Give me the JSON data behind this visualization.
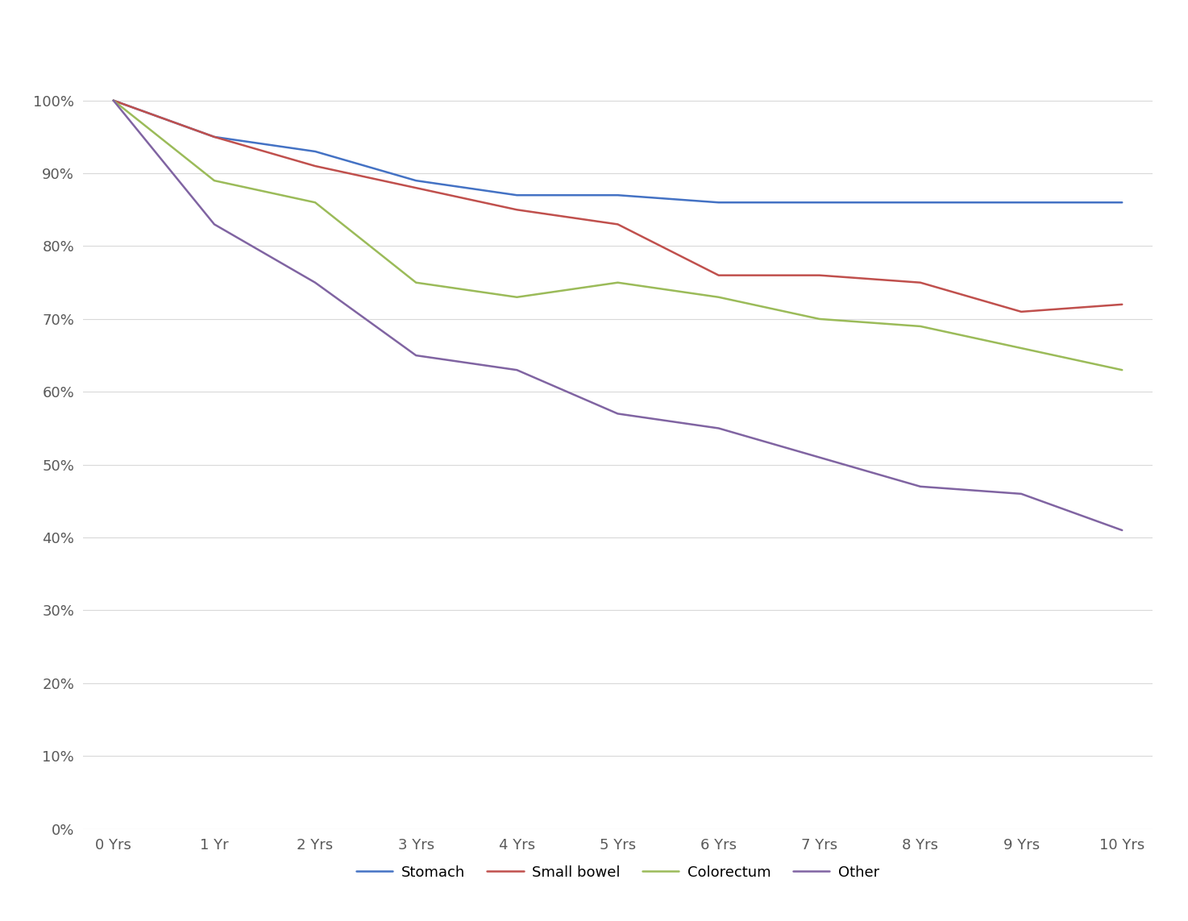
{
  "x_labels": [
    "0 Yrs",
    "1 Yr",
    "2 Yrs",
    "3 Yrs",
    "4 Yrs",
    "5 Yrs",
    "6 Yrs",
    "7 Yrs",
    "8 Yrs",
    "9 Yrs",
    "10 Yrs"
  ],
  "x_values": [
    0,
    1,
    2,
    3,
    4,
    5,
    6,
    7,
    8,
    9,
    10
  ],
  "series": {
    "Stomach": {
      "values": [
        100,
        95,
        93,
        89,
        87,
        87,
        86,
        86,
        86,
        86,
        86
      ],
      "color": "#4472C4"
    },
    "Small bowel": {
      "values": [
        100,
        95,
        91,
        88,
        85,
        83,
        76,
        76,
        75,
        71,
        72
      ],
      "color": "#C0504D"
    },
    "Colorectum": {
      "values": [
        100,
        89,
        86,
        75,
        73,
        75,
        73,
        70,
        69,
        66,
        63
      ],
      "color": "#9BBB59"
    },
    "Other": {
      "values": [
        100,
        83,
        75,
        65,
        63,
        57,
        55,
        51,
        47,
        46,
        41
      ],
      "color": "#8064A2"
    }
  },
  "ylim": [
    0,
    110
  ],
  "yticks": [
    0,
    10,
    20,
    30,
    40,
    50,
    60,
    70,
    80,
    90,
    100
  ],
  "ytick_labels": [
    "0%",
    "10%",
    "20%",
    "30%",
    "40%",
    "50%",
    "60%",
    "70%",
    "80%",
    "90%",
    "100%"
  ],
  "grid_color": "#D9D9D9",
  "background_color": "#FFFFFF",
  "legend_order": [
    "Stomach",
    "Small bowel",
    "Colorectum",
    "Other"
  ],
  "line_width": 1.8,
  "tick_fontsize": 13,
  "legend_fontsize": 13
}
